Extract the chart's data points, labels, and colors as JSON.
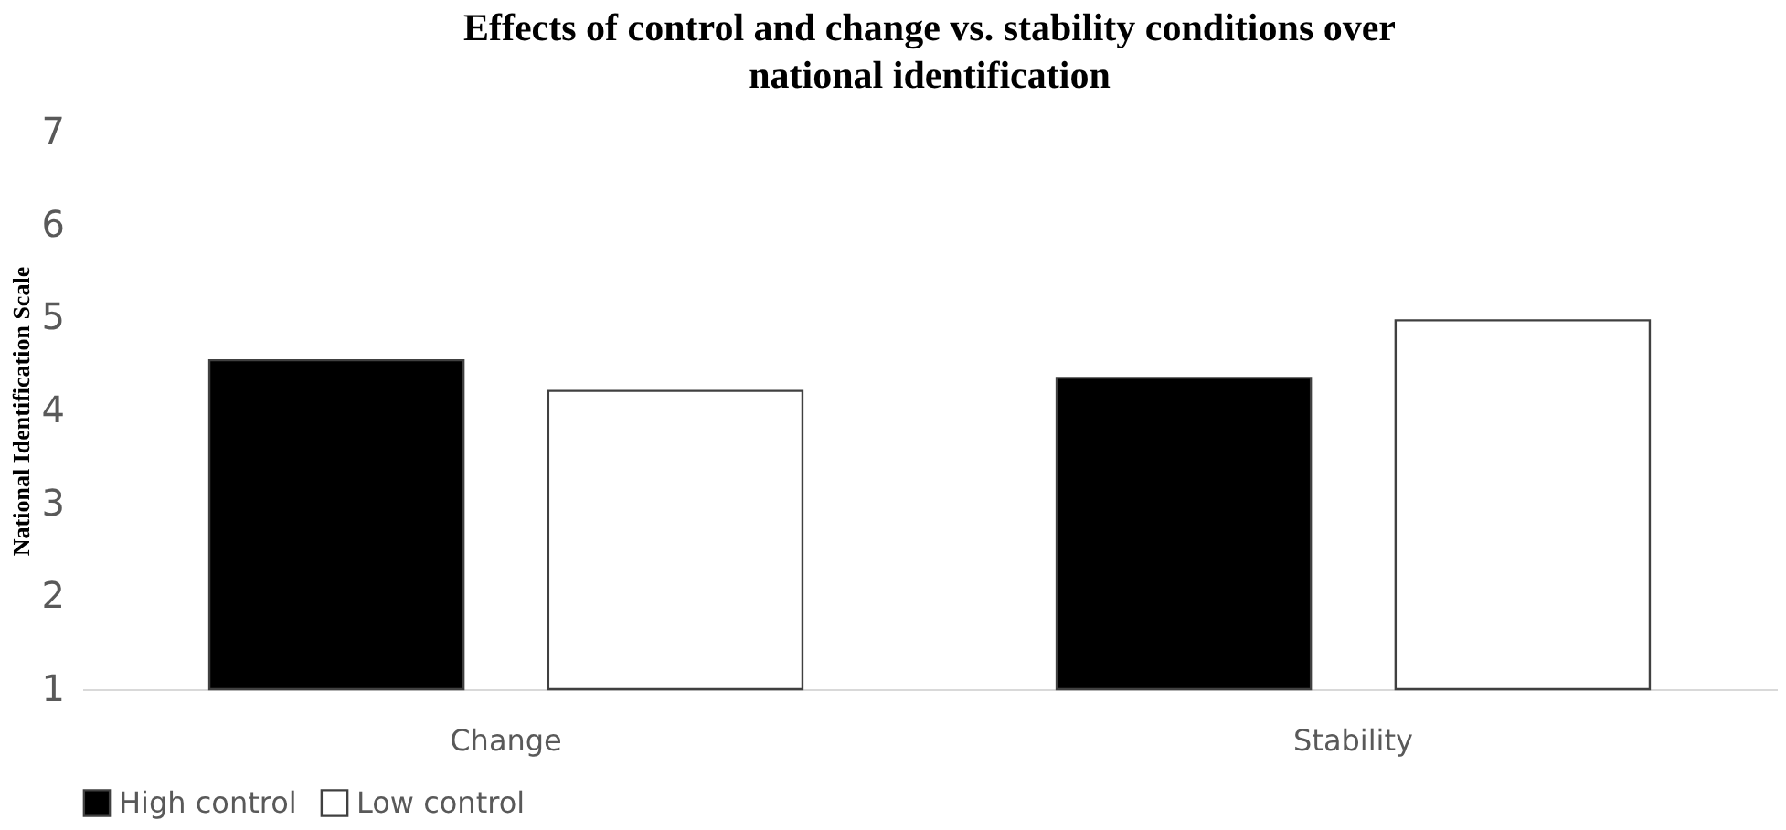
{
  "chart_data": {
    "type": "bar",
    "title": "Effects of control and change vs. stability conditions over national identification",
    "ylabel": "National  Identification  Scale",
    "categories": [
      "Change",
      "Stability"
    ],
    "series": [
      {
        "name": "High control",
        "color": "#000000",
        "values": [
          4.54,
          4.35
        ]
      },
      {
        "name": "Low control",
        "color": "#ffffff",
        "values": [
          4.21,
          4.97
        ]
      }
    ],
    "ylim": [
      1,
      7
    ],
    "yticks": [
      1,
      2,
      3,
      4,
      5,
      6,
      7
    ],
    "grid": false,
    "legend": "bottom"
  }
}
